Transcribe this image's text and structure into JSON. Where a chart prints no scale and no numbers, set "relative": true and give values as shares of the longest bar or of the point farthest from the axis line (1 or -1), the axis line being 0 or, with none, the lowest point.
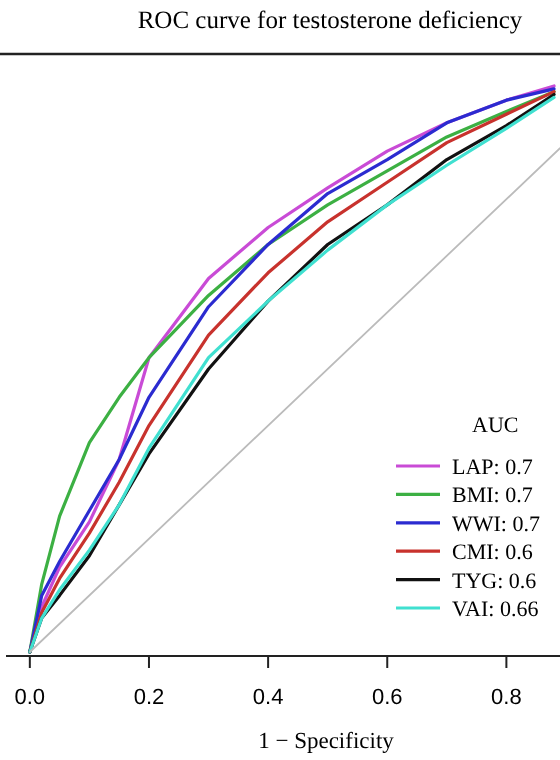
{
  "chart_data": {
    "type": "line",
    "title": "ROC curve for testosterone deficiency",
    "xlabel": "1 − Specificity",
    "legend_title": "AUC",
    "legend": "right",
    "relative": true,
    "tick_labels": "x",
    "x": [
      0,
      0.02,
      0.05,
      0.1,
      0.15,
      0.2,
      0.3,
      0.4,
      0.5,
      0.6,
      0.7,
      0.8,
      0.88
    ],
    "xlim": [
      -0.04,
      0.89
    ],
    "xticks": [
      {
        "value": 0,
        "label": "0.0"
      },
      0.2,
      0.4,
      0.6,
      0.8
    ],
    "series": [
      {
        "name": "LAP: 0.7",
        "color": "#c94bd6",
        "values": [
          0,
          0.08,
          0.15,
          0.23,
          0.34,
          0.52,
          0.66,
          0.75,
          0.82,
          0.885,
          0.935,
          0.975,
          1.0
        ]
      },
      {
        "name": "BMI: 0.7",
        "color": "#3cb043",
        "values": [
          0,
          0.12,
          0.24,
          0.37,
          0.45,
          0.52,
          0.63,
          0.72,
          0.79,
          0.85,
          0.91,
          0.955,
          0.99
        ]
      },
      {
        "name": "WWI: 0.7",
        "color": "#2b2bd0",
        "values": [
          0,
          0.1,
          0.16,
          0.25,
          0.34,
          0.45,
          0.61,
          0.72,
          0.81,
          0.87,
          0.935,
          0.975,
          0.995
        ]
      },
      {
        "name": "CMI: 0.6",
        "color": "#c8322d",
        "values": [
          0,
          0.07,
          0.13,
          0.21,
          0.3,
          0.4,
          0.56,
          0.67,
          0.76,
          0.83,
          0.9,
          0.95,
          0.99
        ]
      },
      {
        "name": "TYG: 0.6",
        "color": "#111111",
        "values": [
          0,
          0.06,
          0.1,
          0.17,
          0.26,
          0.35,
          0.5,
          0.62,
          0.72,
          0.79,
          0.87,
          0.93,
          0.985
        ]
      },
      {
        "name": "VAI: 0.66",
        "color": "#40e0d0",
        "values": [
          0,
          0.06,
          0.11,
          0.18,
          0.26,
          0.36,
          0.52,
          0.62,
          0.71,
          0.79,
          0.86,
          0.925,
          0.98
        ]
      },
      {
        "color": "#bbbbbb",
        "x": [
          0,
          0.89
        ],
        "values": [
          0,
          0.89
        ]
      }
    ]
  }
}
